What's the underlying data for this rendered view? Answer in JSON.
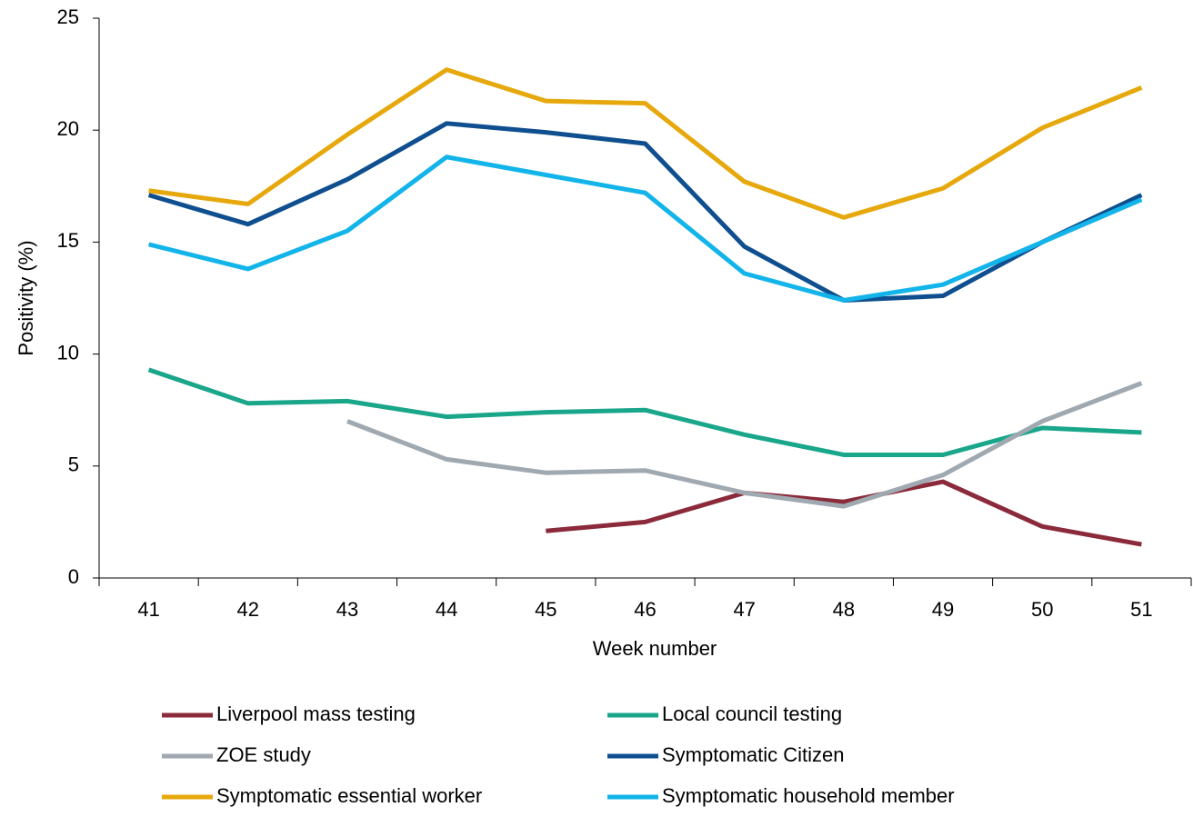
{
  "chart_data": {
    "type": "line",
    "x_label": "Week number",
    "y_label": "Positivity (%)",
    "categories": [
      "41",
      "42",
      "43",
      "44",
      "45",
      "46",
      "47",
      "48",
      "49",
      "50",
      "51"
    ],
    "ylim": [
      0,
      25
    ],
    "yticks": [
      0,
      5,
      10,
      15,
      20,
      25
    ],
    "legend": "bottom",
    "series": [
      {
        "name": "Liverpool mass testing",
        "color": "#8b2a3a",
        "values": [
          null,
          null,
          null,
          null,
          2.1,
          2.5,
          3.8,
          3.4,
          4.3,
          2.3,
          1.5
        ]
      },
      {
        "name": "Local council testing",
        "color": "#1aa68a",
        "values": [
          9.3,
          7.8,
          7.9,
          7.2,
          7.4,
          7.5,
          6.4,
          5.5,
          5.5,
          6.7,
          6.5
        ]
      },
      {
        "name": "ZOE study",
        "color": "#a0a8b0",
        "values": [
          null,
          null,
          7.0,
          5.3,
          4.7,
          4.8,
          3.8,
          3.2,
          4.6,
          7.0,
          8.7
        ]
      },
      {
        "name": "Symptomatic Citizen",
        "color": "#0f4f8f",
        "values": [
          17.1,
          15.8,
          17.8,
          20.3,
          19.9,
          19.4,
          14.8,
          12.4,
          12.6,
          15.0,
          17.1
        ]
      },
      {
        "name": "Symptomatic essential worker",
        "color": "#e6a80c",
        "values": [
          17.3,
          16.7,
          19.8,
          22.7,
          21.3,
          21.2,
          17.7,
          16.1,
          17.4,
          20.1,
          21.9
        ]
      },
      {
        "name": "Symptomatic household member",
        "color": "#12b4ea",
        "values": [
          14.9,
          13.8,
          15.5,
          18.8,
          18.0,
          17.2,
          13.6,
          12.4,
          13.1,
          15.0,
          16.9
        ]
      }
    ]
  }
}
